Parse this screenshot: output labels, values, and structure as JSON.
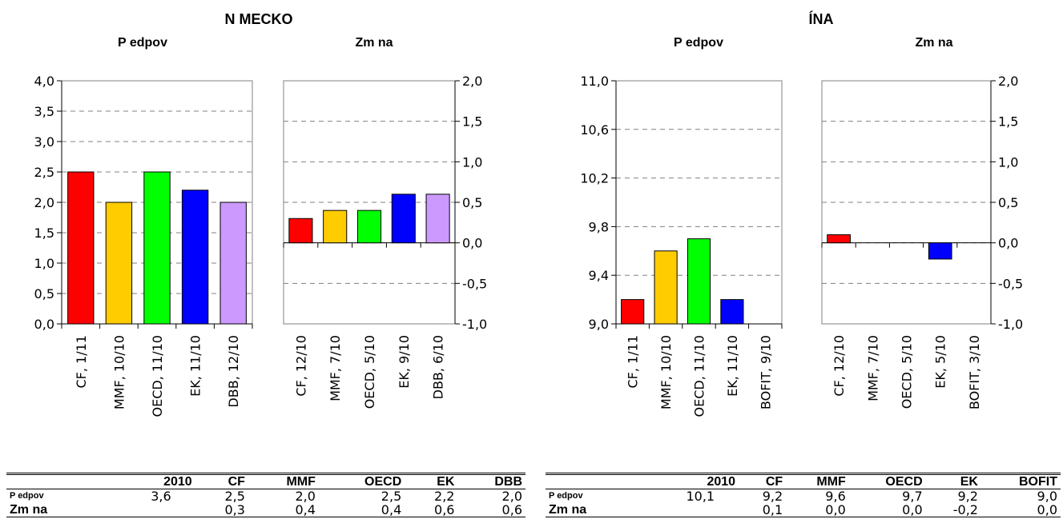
{
  "headers": {
    "de_title": "N MECKO",
    "cn_title": "ÍNA",
    "forecast": "P edpov",
    "change": "Zm na"
  },
  "chart_data": [
    {
      "id": "de_forecast",
      "type": "bar",
      "title": "P edpov",
      "categories": [
        "CF, 1/11",
        "MMF, 10/10",
        "OECD, 11/10",
        "EK, 11/10",
        "DBB, 12/10"
      ],
      "values": [
        2.5,
        2.0,
        2.5,
        2.2,
        2.0
      ],
      "colors": [
        "#ff0000",
        "#ffcc00",
        "#00ff00",
        "#0000ff",
        "#cc99ff"
      ],
      "ylim": [
        0.0,
        4.0
      ],
      "yticks": [
        "0,0",
        "0,5",
        "1,0",
        "1,5",
        "2,0",
        "2,5",
        "3,0",
        "3,5",
        "4,0"
      ],
      "axis_side": "left",
      "grid": true
    },
    {
      "id": "de_change",
      "type": "bar",
      "title": "Zm na",
      "categories": [
        "CF, 12/10",
        "MMF, 7/10",
        "OECD, 5/10",
        "EK, 9/10",
        "DBB, 6/10"
      ],
      "values": [
        0.3,
        0.4,
        0.4,
        0.6,
        0.6
      ],
      "colors": [
        "#ff0000",
        "#ffcc00",
        "#00ff00",
        "#0000ff",
        "#cc99ff"
      ],
      "ylim": [
        -1.0,
        2.0
      ],
      "yticks": [
        "-1,0",
        "-0,5",
        "0,0",
        "0,5",
        "1,0",
        "1,5",
        "2,0"
      ],
      "axis_side": "right",
      "grid": true
    },
    {
      "id": "cn_forecast",
      "type": "bar",
      "title": "P edpov",
      "categories": [
        "CF, 1/11",
        "MMF, 10/10",
        "OECD, 11/10",
        "EK, 11/10",
        "BOFIT, 9/10"
      ],
      "values": [
        9.2,
        9.6,
        9.7,
        9.2,
        9.0
      ],
      "colors": [
        "#ff0000",
        "#ffcc00",
        "#00ff00",
        "#0000ff",
        "#cc99ff"
      ],
      "ylim": [
        9.0,
        11.0
      ],
      "yticks": [
        "9,0",
        "9,4",
        "9,8",
        "10,2",
        "10,6",
        "11,0"
      ],
      "axis_side": "left",
      "grid": true
    },
    {
      "id": "cn_change",
      "type": "bar",
      "title": "Zm na",
      "categories": [
        "CF, 12/10",
        "MMF, 7/10",
        "OECD, 5/10",
        "EK, 5/10",
        "BOFIT, 3/10"
      ],
      "values": [
        0.1,
        0.0,
        0.0,
        -0.2,
        0.0
      ],
      "colors": [
        "#ff0000",
        "#ffcc00",
        "#00ff00",
        "#0000ff",
        "#cc99ff"
      ],
      "ylim": [
        -1.0,
        2.0
      ],
      "yticks": [
        "-1,0",
        "-0,5",
        "0,0",
        "0,5",
        "1,0",
        "1,5",
        "2,0"
      ],
      "axis_side": "right",
      "grid": true
    }
  ],
  "tables": {
    "de": {
      "columns": [
        "",
        "2010",
        "CF",
        "MMF",
        "OECD",
        "EK",
        "DBB"
      ],
      "rows": [
        {
          "label": "P edpov",
          "cells": [
            "3,6",
            "2,5",
            "2,0",
            "2,5",
            "2,2",
            "2,0"
          ]
        },
        {
          "label": "Zm na",
          "cells": [
            "",
            "0,3",
            "0,4",
            "0,4",
            "0,6",
            "0,6"
          ]
        }
      ]
    },
    "cn": {
      "columns": [
        "",
        "2010",
        "CF",
        "MMF",
        "OECD",
        "EK",
        "BOFIT"
      ],
      "rows": [
        {
          "label": "P edpov",
          "cells": [
            "10,1",
            "9,2",
            "9,6",
            "9,7",
            "9,2",
            "9,0"
          ]
        },
        {
          "label": "Zm na",
          "cells": [
            "",
            "0,1",
            "0,0",
            "0,0",
            "-0,2",
            "0,0"
          ]
        }
      ]
    }
  }
}
